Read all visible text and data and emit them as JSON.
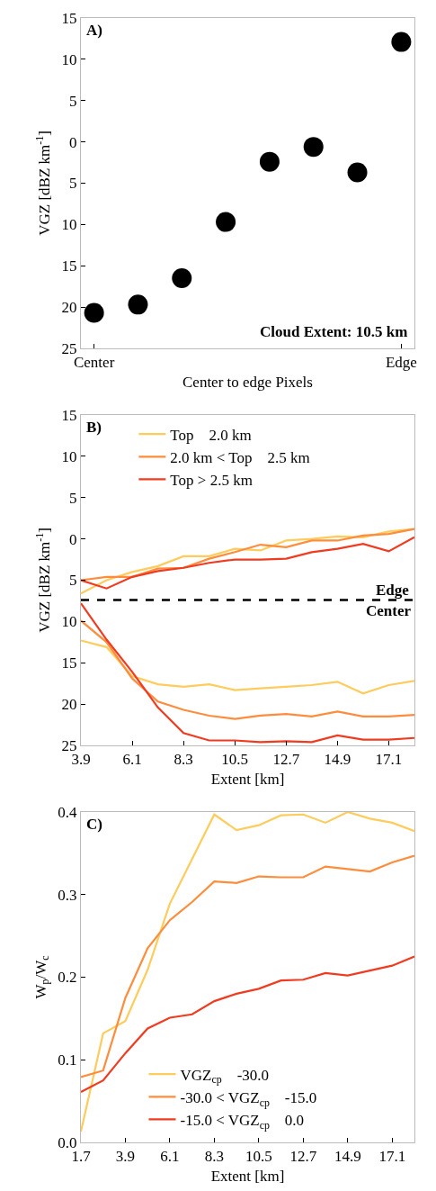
{
  "chart_data": [
    {
      "type": "scatter",
      "categories": [
        "Center",
        null,
        null,
        null,
        null,
        null,
        null,
        "Edge"
      ],
      "series": [
        {
          "color": "#000000",
          "values": [
            -20.7,
            -19.7,
            -16.5,
            -9.7,
            -2.4,
            -0.6,
            -3.7,
            12.1
          ]
        }
      ],
      "marker": "circle",
      "xlabel": "Center to edge Pixels",
      "ylabel": "VGZ [dBZ km$^{-1}$]",
      "ylim": [
        -25,
        15
      ],
      "yticks": [
        15,
        10,
        5,
        0,
        {
          "value": -5,
          "label": "5"
        },
        {
          "value": -10,
          "label": "10"
        },
        {
          "value": -15,
          "label": "15"
        },
        {
          "value": -20,
          "label": "20"
        },
        {
          "value": -25,
          "label": "25"
        }
      ],
      "grid": false,
      "legend": false,
      "annotations": [
        "A)",
        "Cloud Extent: 10.5 km"
      ]
    },
    {
      "type": "line",
      "x": [
        3.9,
        5.0,
        6.1,
        7.2,
        8.3,
        9.4,
        10.5,
        11.6,
        12.7,
        13.8,
        14.9,
        16.0,
        17.1,
        18.2
      ],
      "series": [
        {
          "name": "Top    2.0 km",
          "color": "#fecc5c",
          "values": [
            -6.6,
            -5.0,
            -4.0,
            -3.3,
            -2.1,
            -2.1,
            -1.2,
            -1.4,
            -0.2,
            0.0,
            0.3,
            0.2,
            0.9,
            1.2
          ]
        },
        {
          "name": "2.0 km < Top    2.5 km",
          "color": "#fd8d3c",
          "values": [
            -5.0,
            -4.6,
            -4.6,
            -3.6,
            -3.5,
            -2.4,
            -1.6,
            -0.7,
            -1.0,
            -0.2,
            -0.2,
            0.4,
            0.6,
            1.2
          ]
        },
        {
          "name": "Top > 2.5 km",
          "color": "#f03b20",
          "values": [
            -5.0,
            -6.0,
            -4.6,
            -3.9,
            -3.5,
            -2.9,
            -2.5,
            -2.5,
            -2.4,
            -1.6,
            -1.2,
            -0.6,
            -1.5,
            0.2
          ]
        },
        {
          "color": "#fecc5c",
          "values": [
            -12.3,
            -13.1,
            -16.6,
            -17.6,
            -17.9,
            -17.6,
            -18.3,
            -18.1,
            -17.9,
            -17.7,
            -17.3,
            -18.7,
            -17.7,
            -17.2
          ]
        },
        {
          "color": "#fd8d3c",
          "values": [
            -9.9,
            -12.5,
            -16.9,
            -19.7,
            -20.7,
            -21.4,
            -21.8,
            -21.4,
            -21.2,
            -21.5,
            -20.9,
            -21.5,
            -21.5,
            -21.3
          ]
        },
        {
          "color": "#f03b20",
          "values": [
            -7.8,
            -12.2,
            -16.1,
            -20.4,
            -23.5,
            -24.4,
            -24.4,
            -24.6,
            -24.5,
            -24.6,
            -23.8,
            -24.3,
            -24.3,
            -24.1
          ]
        }
      ],
      "marker": "none",
      "line_style": "solid",
      "xlabel": "Extent [km]",
      "ylabel": "VGZ [dBZ km$^{-1}$]",
      "xlim": [
        3.9,
        18.2
      ],
      "xticks": [
        3.9,
        6.1,
        8.3,
        10.5,
        12.7,
        14.9,
        17.1
      ],
      "ylim": [
        -25,
        15
      ],
      "yticks": [
        15,
        10,
        5,
        0,
        {
          "value": -5,
          "label": "5"
        },
        {
          "value": -10,
          "label": "10"
        },
        {
          "value": -15,
          "label": "15"
        },
        {
          "value": -20,
          "label": "20"
        },
        {
          "value": -25,
          "label": "25"
        }
      ],
      "ref_lines": [
        {
          "axis": "y",
          "value": -7.4,
          "label": "Edge",
          "color": "#000000",
          "line_style": "dashed"
        }
      ],
      "grid": false,
      "legend": "top",
      "annotations": [
        "B)",
        {
          "text": "Center",
          "x": 17.1,
          "y": -7.4
        }
      ]
    },
    {
      "type": "line",
      "x": [
        1.7,
        2.8,
        3.9,
        5.0,
        6.1,
        7.2,
        8.3,
        9.4,
        10.5,
        11.6,
        12.7,
        13.8,
        14.9,
        16.0,
        17.1,
        18.2
      ],
      "series": [
        {
          "name": "VGZ$_{cp}$    -30.0",
          "color": "#fecc5c",
          "values": [
            0.013,
            0.132,
            0.147,
            0.209,
            0.289,
            0.343,
            0.397,
            0.378,
            0.384,
            0.396,
            0.397,
            0.387,
            0.4,
            0.392,
            0.387,
            0.377
          ]
        },
        {
          "name": "-30.0 < VGZ$_{cp}$    -15.0",
          "color": "#fd8d3c",
          "values": [
            0.079,
            0.087,
            0.175,
            0.235,
            0.269,
            0.291,
            0.316,
            0.314,
            0.322,
            0.321,
            0.321,
            0.334,
            0.331,
            0.328,
            0.339,
            0.347
          ]
        },
        {
          "name": "-15.0 < VGZ$_{cp}$    0.0",
          "color": "#f03b20",
          "values": [
            0.061,
            0.075,
            0.108,
            0.138,
            0.151,
            0.155,
            0.171,
            0.18,
            0.186,
            0.196,
            0.197,
            0.205,
            0.202,
            0.208,
            0.214,
            0.225
          ]
        }
      ],
      "marker": "none",
      "line_style": "solid",
      "xlabel": "Extent [km]",
      "ylabel": "W$_{p}$/W$_{c}$",
      "xlim": [
        1.7,
        18.2
      ],
      "xticks": [
        1.7,
        3.9,
        6.1,
        8.3,
        10.5,
        12.7,
        14.9,
        17.1
      ],
      "ylim": [
        0,
        0.4
      ],
      "yticks": [
        {
          "value": 0,
          "label": "0.0"
        },
        0.1,
        0.2,
        0.3,
        0.4
      ],
      "grid": false,
      "legend": "bottom",
      "annotations": [
        "C)"
      ]
    }
  ]
}
